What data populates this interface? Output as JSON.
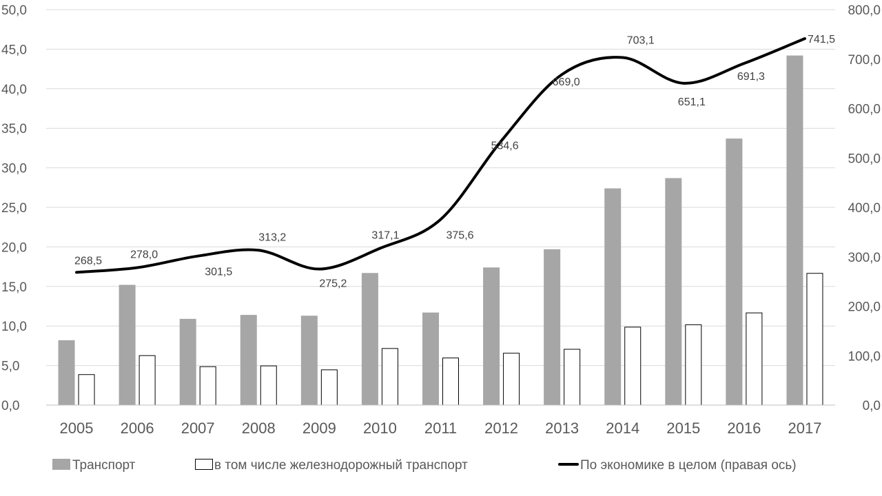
{
  "chart_data": {
    "type": "bar",
    "categories": [
      "2005",
      "2006",
      "2007",
      "2008",
      "2009",
      "2010",
      "2011",
      "2012",
      "2013",
      "2014",
      "2015",
      "2016",
      "2017"
    ],
    "series": [
      {
        "name": "Транспорт",
        "kind": "bar",
        "axis": "left",
        "color": "#a6a6a6",
        "values": [
          8.2,
          15.2,
          10.9,
          11.4,
          11.3,
          16.7,
          11.7,
          17.4,
          19.7,
          27.4,
          28.7,
          33.7,
          44.2
        ]
      },
      {
        "name": "в том числе железнодорожный транспорт",
        "kind": "bar",
        "axis": "left",
        "color": "#ffffff",
        "values": [
          3.9,
          6.3,
          4.9,
          5.0,
          4.5,
          7.2,
          6.0,
          6.6,
          7.1,
          9.9,
          10.2,
          11.7,
          16.7
        ]
      },
      {
        "name": "По экономике в целом (правая ось)",
        "kind": "line",
        "axis": "right",
        "color": "#000000",
        "values": [
          268.5,
          278.0,
          301.5,
          313.2,
          275.2,
          317.1,
          375.6,
          534.6,
          669.0,
          703.1,
          651.1,
          691.3,
          741.5
        ],
        "labels": [
          "268,5",
          "278,0",
          "301,5",
          "313,2",
          "275,2",
          "317,1",
          "375,6",
          "534,6",
          "669,0",
          "703,1",
          "651,1",
          "691,3",
          "741,5"
        ]
      }
    ],
    "left_axis": {
      "ylim": [
        0,
        50
      ],
      "ticks": [
        "0,0",
        "5,0",
        "10,0",
        "15,0",
        "20,0",
        "25,0",
        "30,0",
        "35,0",
        "40,0",
        "45,0",
        "50,0"
      ]
    },
    "right_axis": {
      "ylim": [
        0,
        800
      ],
      "ticks": [
        "0,0",
        "100,0",
        "200,0",
        "300,0",
        "400,0",
        "500,0",
        "600,0",
        "700,0",
        "800,0"
      ]
    },
    "grid": true,
    "legend_position": "bottom"
  }
}
